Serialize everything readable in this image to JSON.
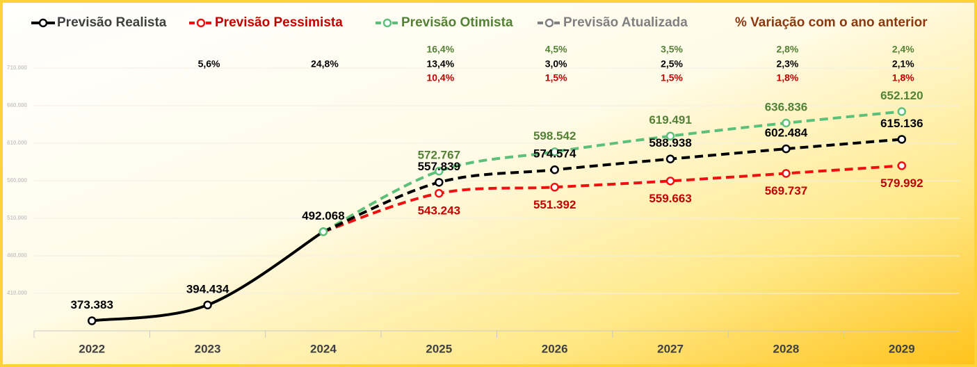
{
  "chart_data": {
    "type": "line",
    "categories": [
      "2022",
      "2023",
      "2024",
      "2025",
      "2026",
      "2027",
      "2028",
      "2029"
    ],
    "variation_title": "% Variação com o ano anterior",
    "series": [
      {
        "name": "Previsão Realista",
        "color": "#000000",
        "label_color": "#000000",
        "values": [
          373383,
          394434,
          492068,
          557839,
          574574,
          588938,
          602484,
          615136
        ],
        "value_labels": [
          "373.383",
          "394.434",
          "492.068",
          "557.839",
          "574.574",
          "588.938",
          "602.484",
          "615.136"
        ],
        "variation": [
          null,
          5.6,
          24.8,
          13.4,
          3.0,
          2.5,
          2.3,
          2.1
        ],
        "variation_labels": [
          null,
          "5,6%",
          "24,8%",
          "13,4%",
          "3,0%",
          "2,5%",
          "2,3%",
          "2,1%"
        ]
      },
      {
        "name": "Previsão Pessimista",
        "color": "#ee1111",
        "label_color": "#c00000",
        "values": [
          null,
          null,
          492068,
          543243,
          551392,
          559663,
          569737,
          579992
        ],
        "value_labels": [
          null,
          null,
          null,
          "543.243",
          "551.392",
          "559.663",
          "569.737",
          "579.992"
        ],
        "variation": [
          null,
          null,
          null,
          10.4,
          1.5,
          1.5,
          1.8,
          1.8
        ],
        "variation_labels": [
          null,
          null,
          null,
          "10,4%",
          "1,5%",
          "1,5%",
          "1,8%",
          "1,8%"
        ]
      },
      {
        "name": "Previsão Otimista",
        "color": "#5cbf7a",
        "label_color": "#538135",
        "values": [
          null,
          null,
          492068,
          572767,
          598542,
          619491,
          636836,
          652120
        ],
        "value_labels": [
          null,
          null,
          null,
          "572.767",
          "598.542",
          "619.491",
          "636.836",
          "652.120"
        ],
        "variation": [
          null,
          null,
          null,
          16.4,
          4.5,
          3.5,
          2.8,
          2.4
        ],
        "variation_labels": [
          null,
          null,
          null,
          "16,4%",
          "4,5%",
          "3,5%",
          "2,8%",
          "2,4%"
        ]
      },
      {
        "name": "Previsão Atualizada",
        "color": "#808080",
        "label_color": "#808080",
        "values": [
          null,
          null,
          null,
          null,
          null,
          null,
          null,
          null
        ]
      }
    ],
    "ylim": [
      360000,
      710000
    ],
    "yticks": [
      {
        "value": 410000,
        "label": "410.000"
      },
      {
        "value": 460000,
        "label": "460.000"
      },
      {
        "value": 510000,
        "label": "510.000"
      },
      {
        "value": 560000,
        "label": "560.000"
      },
      {
        "value": 610000,
        "label": "610.000"
      },
      {
        "value": 660000,
        "label": "660.000"
      },
      {
        "value": 710000,
        "label": "710.000"
      }
    ],
    "grid": true
  }
}
